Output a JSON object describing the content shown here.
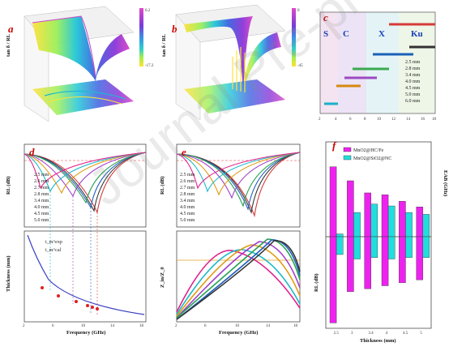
{
  "panels": {
    "a": {
      "tag": "a",
      "zlabel": "tan δ / RL"
    },
    "b": {
      "tag": "b",
      "zlabel": "tan δ / RL"
    },
    "c": {
      "tag": "c",
      "bands": [
        "S",
        "C",
        "X",
        "Ku"
      ],
      "thicknesses": [
        "2.5 mm",
        "2.8 mm",
        "3.4 mm",
        "4.0 mm",
        "4.5 mm",
        "5.0 mm",
        "6.0 mm"
      ]
    },
    "d": {
      "tag": "d",
      "ylabel_top": "RL (dB)",
      "ylabel_bottom": "Thickness (mm)",
      "xlabel": "Frequency (GHz)",
      "legend": [
        "2.5 mm",
        "2.6 mm",
        "2.7 mm",
        "2.8 mm",
        "3.4 mm",
        "4.0 mm",
        "4.5 mm",
        "5.0 mm"
      ],
      "legend_bottom": [
        "t_m^exp",
        "t_m^cal"
      ]
    },
    "e": {
      "tag": "e",
      "ylabel_top": "RL (dB)",
      "ylabel_bottom": "Z_in/Z_0",
      "xlabel": "Frequency (GHz)",
      "legend": [
        "2.5 mm",
        "2.6 mm",
        "2.7 mm",
        "2.8 mm",
        "3.4 mm",
        "4.0 mm",
        "4.5 mm",
        "5.0 mm"
      ]
    },
    "f": {
      "tag": "f",
      "ylabel_left": "RL (dB)",
      "ylabel_right": "EAB (GHz)",
      "xlabel": "Thickness (mm)",
      "legend": [
        "MnO2@HC/Fe",
        "MnO2@SiO2@NC"
      ]
    }
  },
  "colors": {
    "magenta": "#ee22ee",
    "cyan": "#22dddd"
  },
  "chart_data": [
    {
      "type": "bar",
      "title": "",
      "xlabel": "Thickness (mm)",
      "ylabel": "EAB (GHz)",
      "categories": [
        "2.5",
        "3",
        "3.4",
        "4",
        "4.5",
        "5"
      ],
      "series": [
        {
          "name": "MnO2@HC/Fe",
          "values": [
            7.5,
            6.0,
            4.7,
            4.5,
            3.8,
            3.2
          ]
        },
        {
          "name": "MnO2@SiO2@NC",
          "values": [
            0.3,
            2.6,
            3.5,
            3.3,
            2.6,
            2.4
          ]
        }
      ],
      "ylim": [
        0,
        10
      ]
    },
    {
      "type": "bar",
      "title": "",
      "xlabel": "Thickness (mm)",
      "ylabel": "RL (dB)",
      "categories": [
        "2.5",
        "3",
        "3.4",
        "4",
        "4.5",
        "5"
      ],
      "series": [
        {
          "name": "MnO2@HC/Fe",
          "values": [
            -58,
            -37,
            -35,
            -33,
            -31,
            -29
          ]
        },
        {
          "name": "MnO2@SiO2@NC",
          "values": [
            -12,
            -15,
            -14,
            -15,
            -14,
            -14
          ]
        }
      ],
      "ylim": [
        -60,
        0
      ]
    }
  ],
  "watermark": "Journal Pre-proof"
}
